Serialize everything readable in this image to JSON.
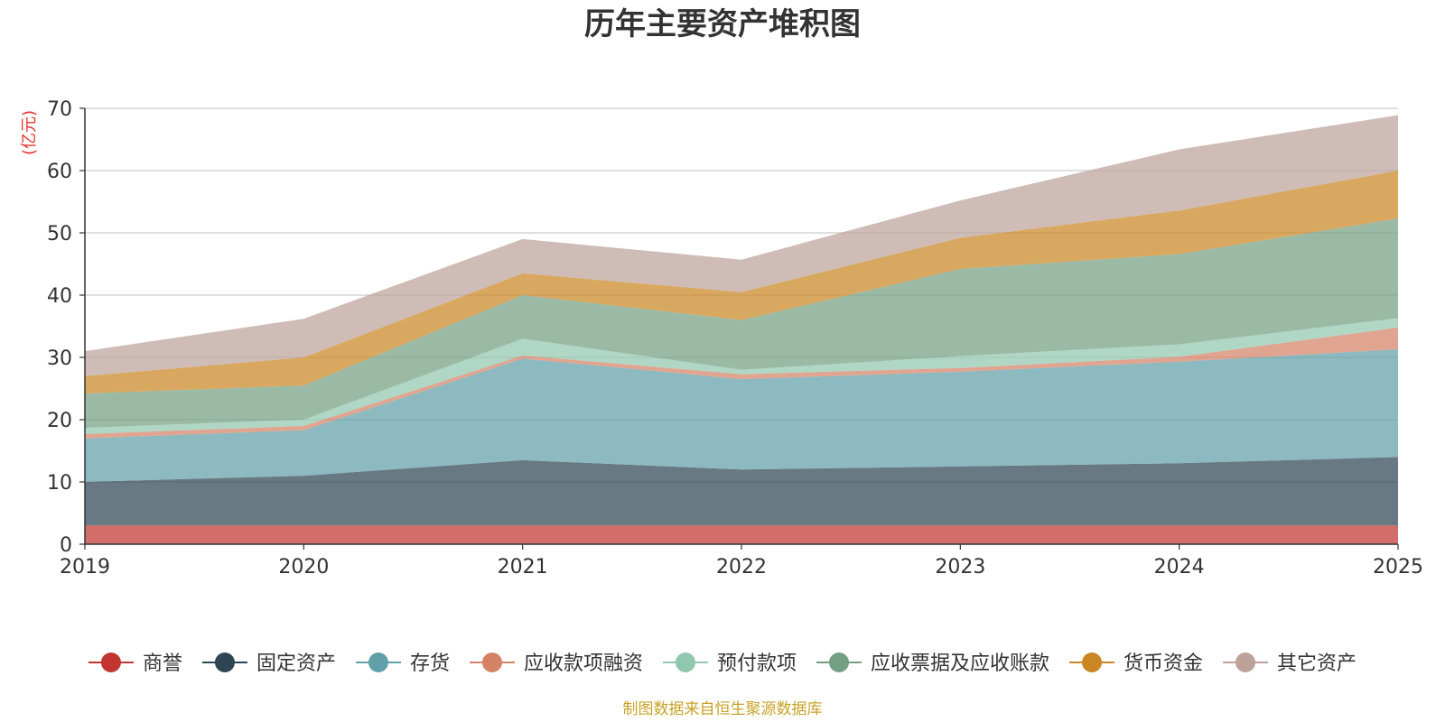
{
  "chart_data": {
    "type": "area",
    "stacked": true,
    "title": "历年主要资产堆积图",
    "unit_label": "(亿元)",
    "x": [
      "2019",
      "2020",
      "2021",
      "2022",
      "2023",
      "2024",
      "2025"
    ],
    "ylim": [
      0,
      70
    ],
    "yticks": [
      0,
      10,
      20,
      30,
      40,
      50,
      60,
      70
    ],
    "grid": true,
    "legend_position": "bottom",
    "series": [
      {
        "name": "商誉",
        "color": "#c23531",
        "values": [
          3.0,
          3.0,
          3.0,
          3.0,
          3.0,
          3.0,
          3.0
        ]
      },
      {
        "name": "固定资产",
        "color": "#2f4554",
        "values": [
          7.0,
          8.0,
          10.5,
          9.0,
          9.5,
          10.0,
          11.0
        ]
      },
      {
        "name": "存货",
        "color": "#61a0a8",
        "values": [
          7.0,
          7.3,
          16.3,
          14.5,
          15.2,
          16.3,
          17.3
        ]
      },
      {
        "name": "应收款项融资",
        "color": "#d48265",
        "values": [
          0.7,
          0.7,
          0.5,
          0.8,
          0.6,
          0.8,
          3.5
        ]
      },
      {
        "name": "预付款项",
        "color": "#91c7ae",
        "values": [
          1.0,
          1.0,
          2.7,
          0.7,
          1.9,
          2.0,
          1.5
        ]
      },
      {
        "name": "应收票据及应收账款",
        "color": "#749f83",
        "values": [
          5.5,
          5.5,
          7.0,
          8.0,
          14.0,
          14.5,
          16.0
        ]
      },
      {
        "name": "货币资金",
        "color": "#ca8622",
        "values": [
          2.8,
          4.5,
          3.5,
          4.5,
          5.0,
          7.0,
          7.7
        ]
      },
      {
        "name": "其它资产",
        "color": "#bda29a",
        "values": [
          4.0,
          6.2,
          5.5,
          5.2,
          6.0,
          9.8,
          8.9
        ]
      }
    ],
    "source_note": "制图数据来自恒生聚源数据库"
  }
}
